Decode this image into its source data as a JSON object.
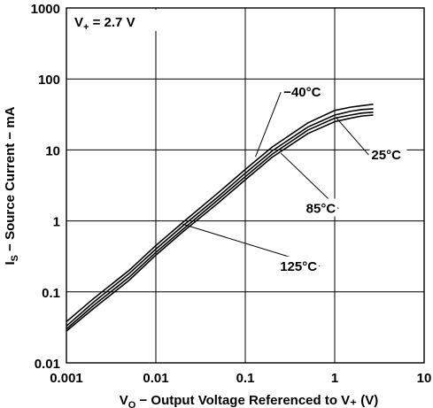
{
  "chart_data": {
    "type": "line",
    "title": "",
    "xlabel": {
      "pre": "V",
      "sub": "O",
      "post": " − Output Voltage Referenced to V₊ (V)"
    },
    "ylabel": {
      "pre": "I",
      "sub": "S",
      "post": " − Source Current − mA"
    },
    "x_scale": "log",
    "y_scale": "log",
    "xlim": [
      0.001,
      10
    ],
    "ylim": [
      0.01,
      1000
    ],
    "grid": true,
    "x_ticks": [
      0.001,
      0.01,
      0.1,
      1,
      10
    ],
    "x_tick_labels": [
      "0.001",
      "0.01",
      "0.1",
      "1",
      "10"
    ],
    "y_ticks": [
      0.01,
      0.1,
      1,
      10,
      100,
      1000
    ],
    "y_tick_labels": [
      "0.01",
      "0.1",
      "1",
      "10",
      "100",
      "1000"
    ],
    "annotation": {
      "pre": "V",
      "sub": "+",
      "post": " = 2.7 V"
    },
    "series": [
      {
        "name": "−40°C",
        "x": [
          0.001,
          0.002,
          0.005,
          0.01,
          0.02,
          0.05,
          0.1,
          0.2,
          0.5,
          1,
          1.5,
          2,
          2.7
        ],
        "y": [
          0.038,
          0.08,
          0.2,
          0.45,
          0.95,
          2.5,
          5.3,
          11,
          24,
          36,
          40,
          42,
          44
        ]
      },
      {
        "name": "25°C",
        "x": [
          0.001,
          0.002,
          0.005,
          0.01,
          0.02,
          0.05,
          0.1,
          0.2,
          0.5,
          1,
          1.5,
          2,
          2.7
        ],
        "y": [
          0.033,
          0.071,
          0.18,
          0.4,
          0.85,
          2.2,
          4.7,
          9.7,
          21,
          31,
          35,
          37,
          38
        ]
      },
      {
        "name": "85°C",
        "x": [
          0.001,
          0.002,
          0.005,
          0.01,
          0.02,
          0.05,
          0.1,
          0.2,
          0.5,
          1,
          1.5,
          2,
          2.7
        ],
        "y": [
          0.03,
          0.064,
          0.16,
          0.36,
          0.76,
          2.0,
          4.2,
          8.7,
          19,
          28,
          31,
          33,
          34
        ]
      },
      {
        "name": "125°C",
        "x": [
          0.001,
          0.002,
          0.005,
          0.01,
          0.02,
          0.05,
          0.1,
          0.2,
          0.5,
          1,
          1.5,
          2,
          2.7
        ],
        "y": [
          0.028,
          0.058,
          0.145,
          0.33,
          0.7,
          1.8,
          3.8,
          7.9,
          17,
          25,
          28,
          30,
          31
        ]
      }
    ],
    "labels": [
      {
        "series": 0,
        "text": "−40°C",
        "at": [
          0.25,
          65
        ],
        "point": [
          0.13,
          8
        ],
        "anchor": "start"
      },
      {
        "series": 1,
        "text": "25°C",
        "at": [
          2.4,
          8.5
        ],
        "point": [
          1.05,
          28
        ],
        "anchor": "start"
      },
      {
        "series": 2,
        "text": "85°C",
        "at": [
          1.1,
          1.5
        ],
        "point": [
          0.25,
          9
        ],
        "anchor": "end"
      },
      {
        "series": 3,
        "text": "125°C",
        "at": [
          0.68,
          0.23
        ],
        "point": [
          0.02,
          0.9
        ],
        "anchor": "end"
      }
    ]
  }
}
